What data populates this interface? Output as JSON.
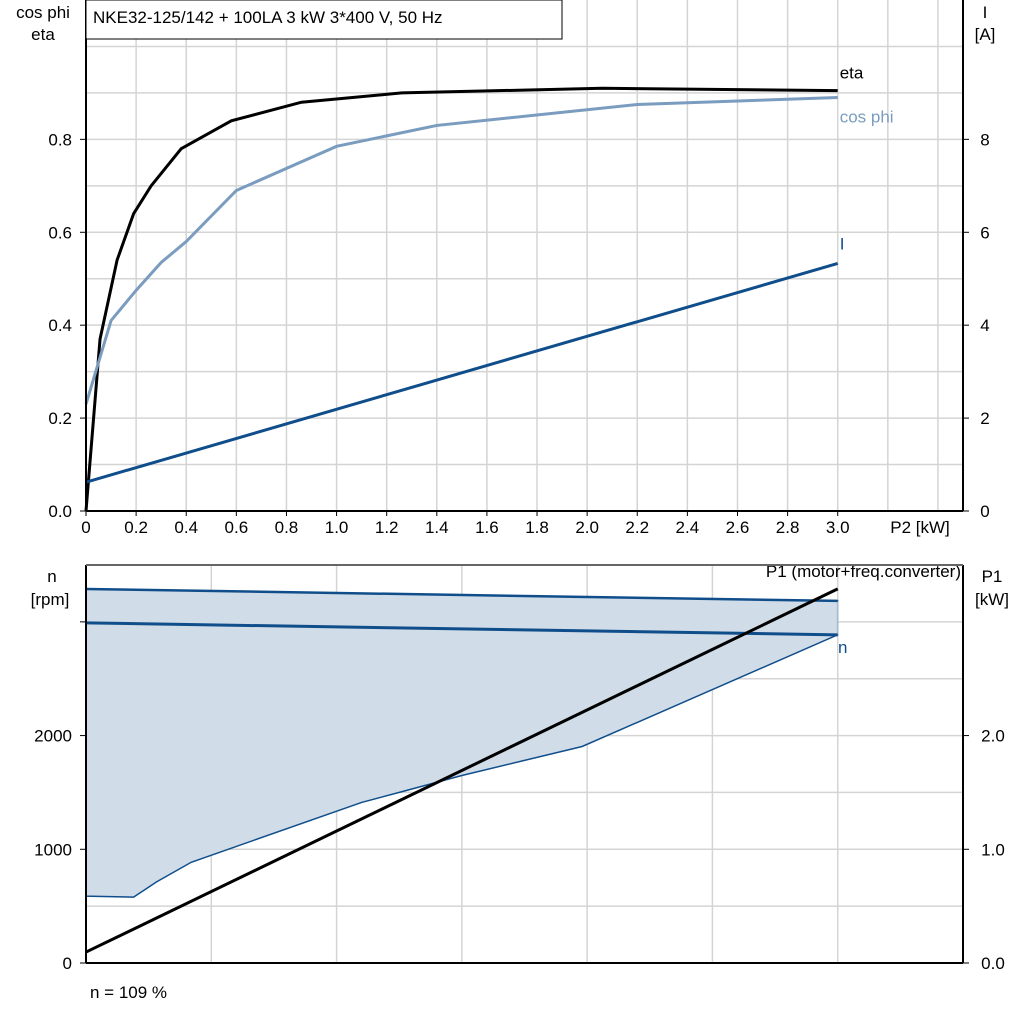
{
  "chart_data": [
    {
      "type": "line",
      "title": "NKE32-125/142 + 100LA   3 kW   3*400 V, 50 Hz",
      "xlabel": "P2 [kW]",
      "ylabel": [
        "cos phi",
        "eta"
      ],
      "y2label": [
        "I",
        "[A]"
      ],
      "xlim": [
        0,
        3.5
      ],
      "ylim": [
        0,
        1.1
      ],
      "y2lim": [
        0,
        11
      ],
      "grid": true,
      "xticks": [
        "0",
        "0.2",
        "0.4",
        "0.6",
        "0.8",
        "1.0",
        "1.2",
        "1.4",
        "1.6",
        "1.8",
        "2.0",
        "2.2",
        "2.4",
        "2.6",
        "2.8",
        "3.0"
      ],
      "yticks": [
        "0.0",
        "0.2",
        "0.4",
        "0.6",
        "0.8"
      ],
      "y2ticks": [
        "0",
        "2",
        "4",
        "6",
        "8"
      ],
      "series": [
        {
          "name": "eta",
          "axis": "left",
          "color": "#000000",
          "x": [
            0,
            0.056,
            0.124,
            0.19,
            0.26,
            0.38,
            0.58,
            0.86,
            1.26,
            2.06,
            3.0
          ],
          "y": [
            0,
            0.37,
            0.54,
            0.64,
            0.7,
            0.78,
            0.84,
            0.88,
            0.9,
            0.91,
            0.905
          ]
        },
        {
          "name": "cos phi",
          "axis": "left",
          "color": "#7a9cbf",
          "x": [
            0,
            0.1,
            0.2,
            0.3,
            0.4,
            0.6,
            1.0,
            1.4,
            2.2,
            3.0
          ],
          "y": [
            0.23,
            0.41,
            0.475,
            0.535,
            0.58,
            0.69,
            0.785,
            0.83,
            0.875,
            0.89
          ]
        },
        {
          "name": "I",
          "axis": "right",
          "color": "#104e8b",
          "x": [
            0,
            3.0
          ],
          "y": [
            0.62,
            5.33
          ]
        }
      ]
    },
    {
      "type": "line",
      "ylabel": [
        "n",
        "[rpm]"
      ],
      "y2label": [
        "P1",
        "[kW]"
      ],
      "xlim": [
        0,
        3.5
      ],
      "ylim": [
        0,
        3500
      ],
      "y2lim": [
        0,
        3.5
      ],
      "grid": true,
      "yticks": [
        "0",
        "1000",
        "2000"
      ],
      "y2ticks": [
        "0.0",
        "1.0",
        "2.0"
      ],
      "series": [
        {
          "name": "n",
          "axis": "left",
          "color": "#104e8b",
          "x": [
            0,
            3.0
          ],
          "y": [
            2991,
            2886
          ]
        },
        {
          "name": "P1 (motor+freq.converter)",
          "axis": "right",
          "color": "#000000",
          "x": [
            0,
            3.0
          ],
          "y": [
            0.096,
            3.29
          ]
        }
      ],
      "range_band": {
        "color": "#d0dce8",
        "upper": {
          "x": [
            0,
            3.0
          ],
          "y": [
            3289,
            3184
          ]
        },
        "lower": {
          "x": [
            0,
            0.19,
            0.28,
            0.42,
            1.1,
            1.28,
            1.5,
            1.98,
            3.0
          ],
          "y": [
            588,
            579,
            711,
            886,
            1412,
            1518,
            1649,
            1904,
            2886
          ]
        }
      },
      "annotation": "n = 109 %"
    }
  ]
}
